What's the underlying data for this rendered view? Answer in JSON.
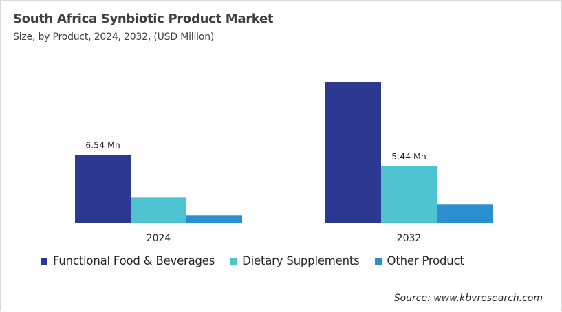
{
  "chart_data": {
    "type": "bar",
    "title": "South Africa Synbiotic Product Market",
    "subtitle": "Size, by Product, 2024, 2032, (USD Million)",
    "categories": [
      "2024",
      "2032"
    ],
    "series": [
      {
        "name": "Functional Food & Beverages",
        "color": "#2b3990",
        "values": [
          6.54,
          13.56
        ],
        "labels": [
          "6.54 Mn",
          ""
        ]
      },
      {
        "name": "Dietary Supplements",
        "color": "#4fc3cf",
        "values": [
          2.43,
          5.44
        ],
        "labels": [
          "",
          "5.44 Mn"
        ]
      },
      {
        "name": "Other Product",
        "color": "#2a8fce",
        "values": [
          0.71,
          1.77
        ],
        "labels": [
          "",
          ""
        ]
      }
    ],
    "ylim": [
      0,
      15
    ],
    "grid": false,
    "legend": "bottom",
    "source": "Source: www.kbvresearch.com"
  }
}
